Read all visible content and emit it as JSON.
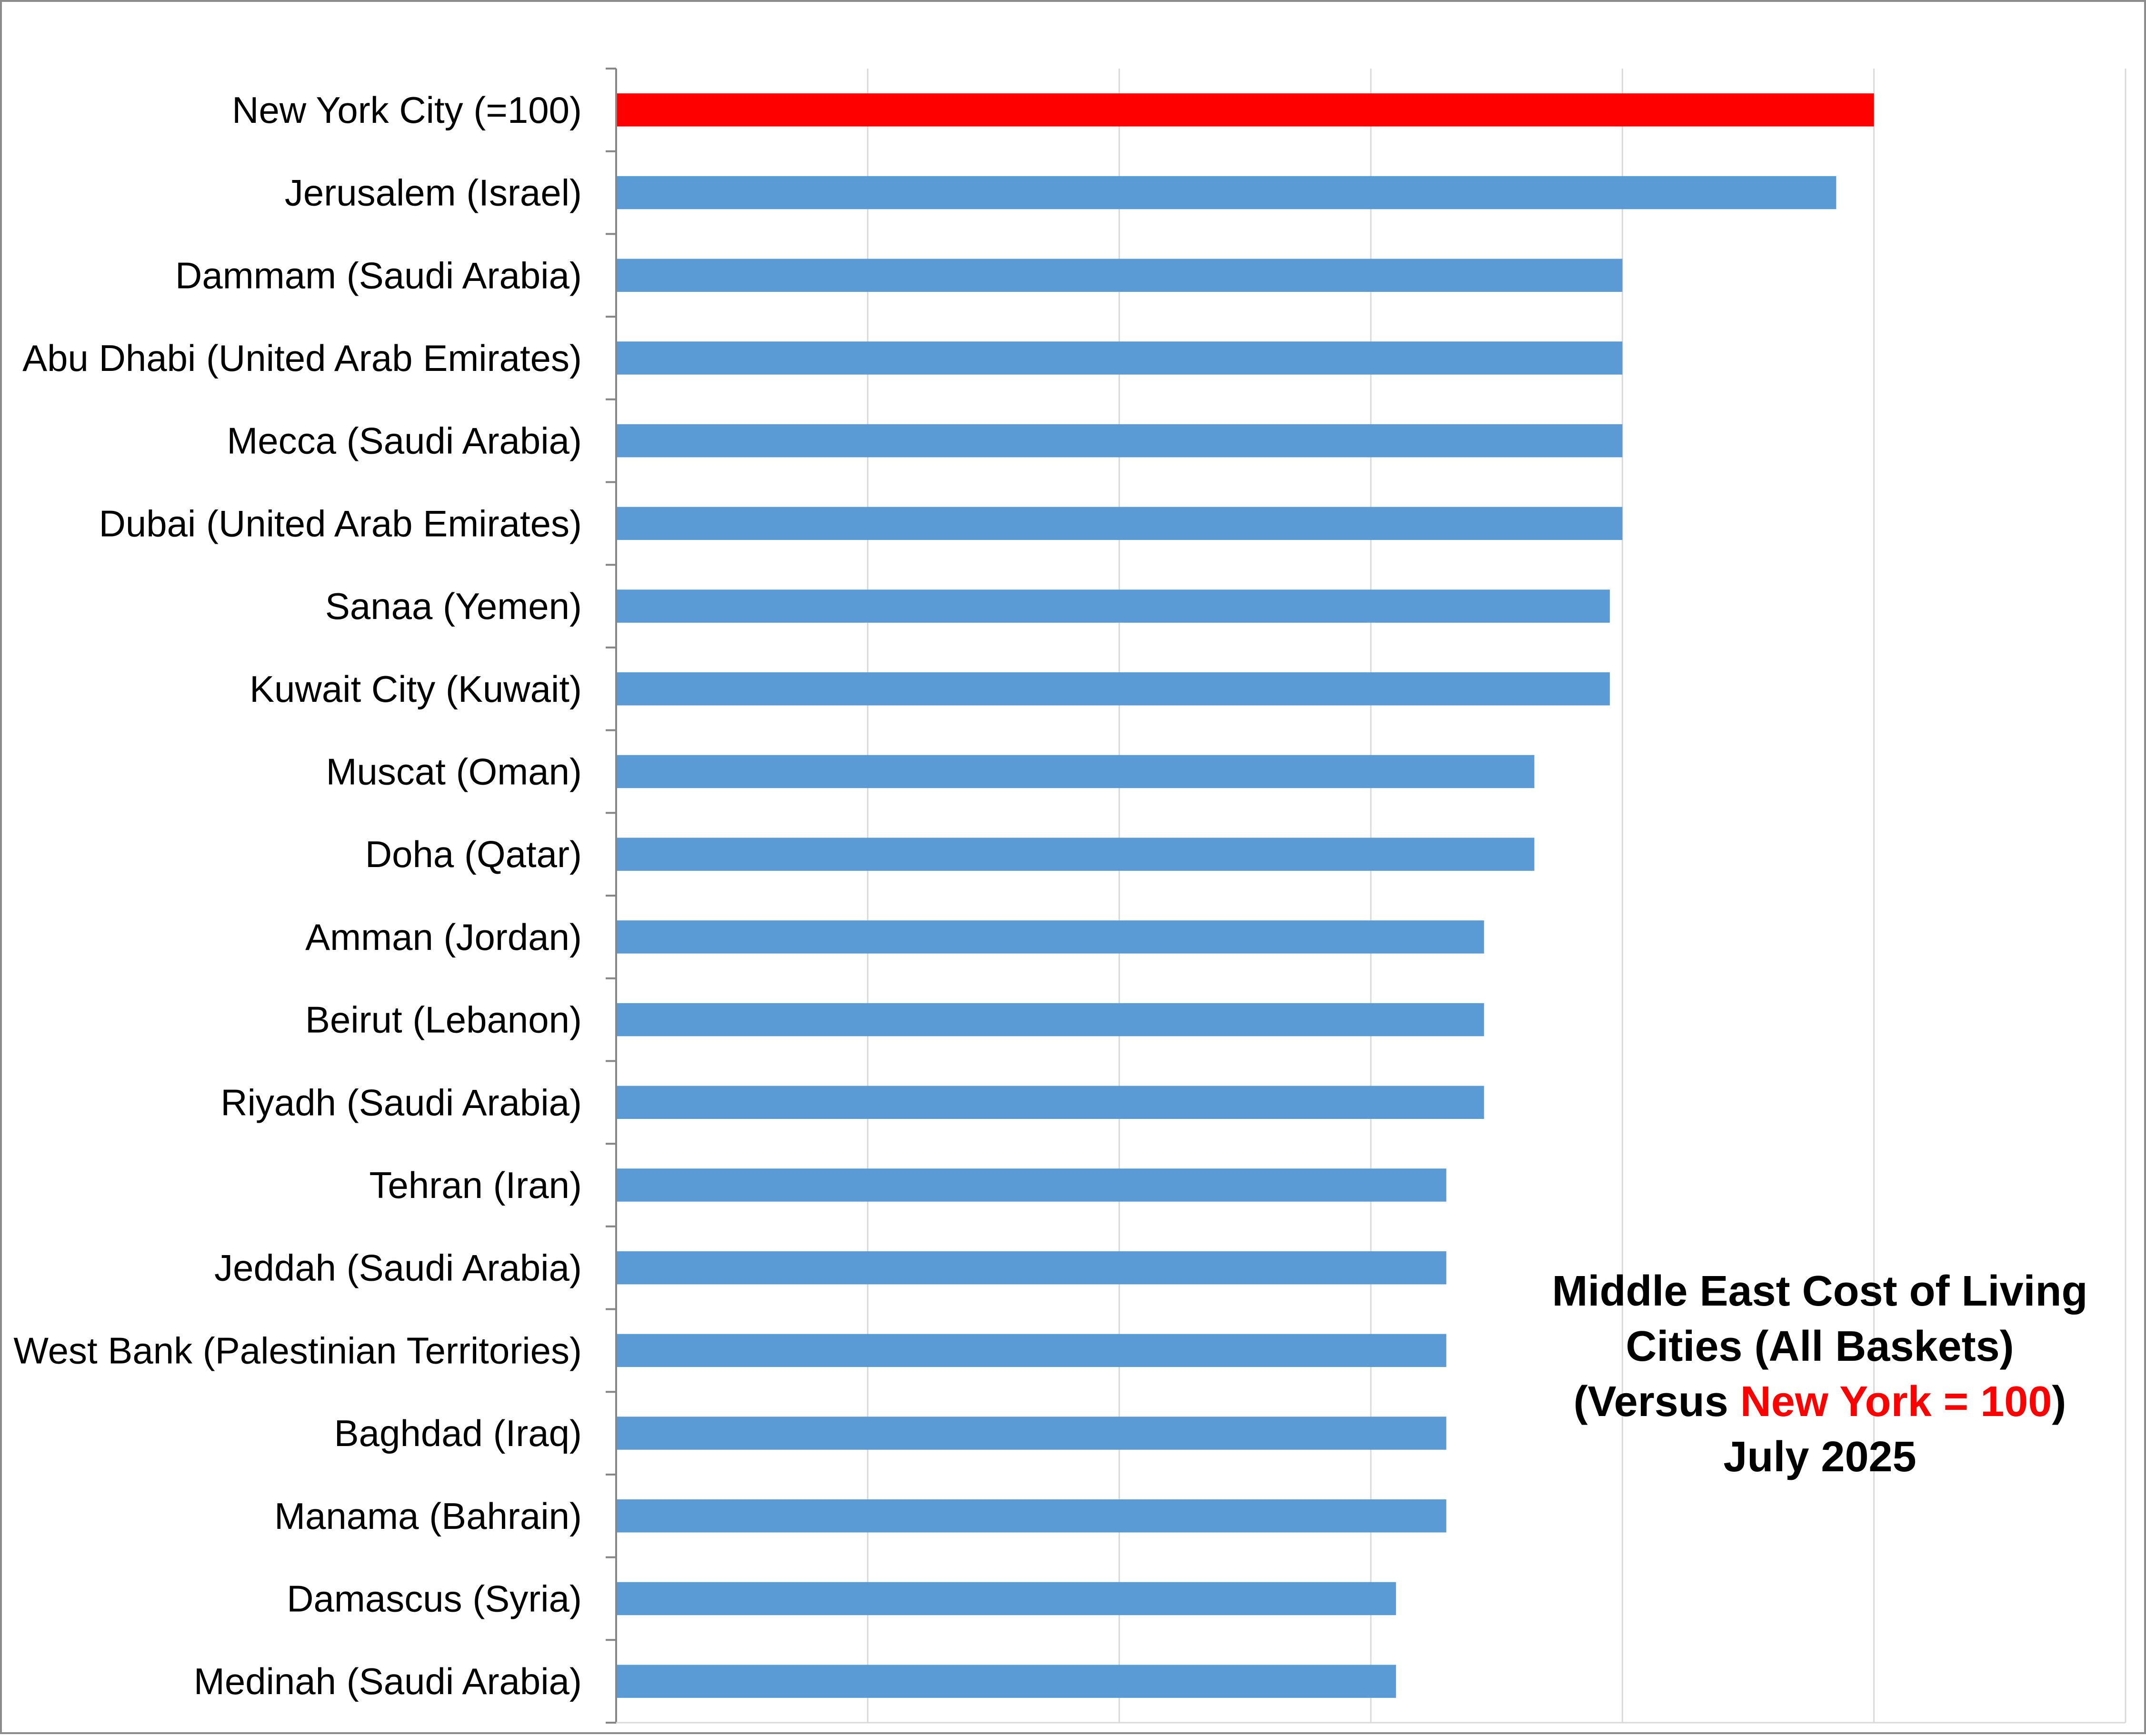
{
  "chart_data": {
    "type": "bar",
    "orientation": "horizontal",
    "categories": [
      "New York City (=100)",
      "Jerusalem (Israel)",
      "Dammam (Saudi Arabia)",
      "Abu Dhabi (United Arab Emirates)",
      "Mecca (Saudi Arabia)",
      "Dubai (United Arab Emirates)",
      "Sanaa (Yemen)",
      "Kuwait City (Kuwait)",
      "Muscat (Oman)",
      "Doha (Qatar)",
      "Amman (Jordan)",
      "Beirut (Lebanon)",
      "Riyadh (Saudi Arabia)",
      "Tehran (Iran)",
      "Jeddah (Saudi Arabia)",
      "West Bank (Palestinian Territories)",
      "Baghdad (Iraq)",
      "Manama (Bahrain)",
      "Damascus (Syria)",
      "Medinah (Saudi Arabia)"
    ],
    "values": [
      100,
      97,
      80,
      80,
      80,
      80,
      79,
      79,
      73,
      73,
      69,
      69,
      69,
      66,
      66,
      66,
      66,
      66,
      62,
      62
    ],
    "bar_colors": [
      "#ff0000",
      "#5b9bd5",
      "#5b9bd5",
      "#5b9bd5",
      "#5b9bd5",
      "#5b9bd5",
      "#5b9bd5",
      "#5b9bd5",
      "#5b9bd5",
      "#5b9bd5",
      "#5b9bd5",
      "#5b9bd5",
      "#5b9bd5",
      "#5b9bd5",
      "#5b9bd5",
      "#5b9bd5",
      "#5b9bd5",
      "#5b9bd5",
      "#5b9bd5",
      "#5b9bd5"
    ],
    "xlim": [
      0,
      120
    ],
    "x_gridlines": [
      20,
      40,
      60,
      80,
      100,
      120
    ],
    "grid": true,
    "legend": "none",
    "title_lines": [
      [
        {
          "text": "Middle East  Cost of Living",
          "color": "#000000"
        }
      ],
      [
        {
          "text": "Cities (All Baskets)",
          "color": "#000000"
        }
      ],
      [
        {
          "text": "(Versus ",
          "color": "#000000"
        },
        {
          "text": "New York = 100",
          "color": "#ff0000"
        },
        {
          "text": ")",
          "color": "#000000"
        }
      ],
      [
        {
          "text": "July 2025",
          "color": "#000000"
        }
      ]
    ],
    "colors": {
      "series": "#5b9bd5",
      "highlight": "#ff0000",
      "gridline": "#d9d9d9",
      "axis": "#868686"
    }
  }
}
